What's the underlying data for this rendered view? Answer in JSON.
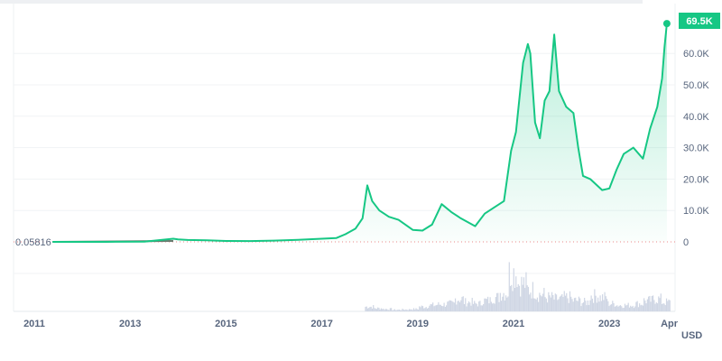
{
  "chart_data": {
    "type": "area",
    "currency_label": "USD",
    "current_price_label": "69.5K",
    "start_price_label": "0.05816",
    "colors": {
      "line": "#16c784",
      "fill": "#16c784",
      "badge": "#16c784",
      "early_line": "#6b7a6f",
      "volume": "#cfd6e4"
    },
    "y_ticks": [
      "0",
      "10.0K",
      "20.0K",
      "30.0K",
      "40.0K",
      "50.0K",
      "60.0K"
    ],
    "y_tick_values": [
      0,
      10000,
      20000,
      30000,
      40000,
      50000,
      60000
    ],
    "x_ticks": [
      "2011",
      "2013",
      "2015",
      "2017",
      "2019",
      "2021",
      "2023",
      "Apr"
    ],
    "x_tick_values": [
      2011,
      2013,
      2015,
      2017,
      2019,
      2021,
      2023,
      2024.25
    ],
    "ylim": [
      0,
      70000
    ],
    "grid": true,
    "series": [
      {
        "x": [
          2011.38,
          2012.5,
          2013.3,
          2013.9,
          2014.0,
          2014.2,
          2014.6,
          2015.0,
          2015.5,
          2016.0,
          2016.5,
          2017.0,
          2017.3,
          2017.5,
          2017.7,
          2017.85,
          2017.95,
          2018.05,
          2018.2,
          2018.4,
          2018.6,
          2018.9,
          2019.1,
          2019.3,
          2019.5,
          2019.7,
          2019.9,
          2020.2,
          2020.4,
          2020.6,
          2020.8,
          2020.95,
          2021.05,
          2021.2,
          2021.3,
          2021.35,
          2021.45,
          2021.55,
          2021.65,
          2021.75,
          2021.85,
          2021.95,
          2022.1,
          2022.25,
          2022.35,
          2022.45,
          2022.6,
          2022.85,
          2023.0,
          2023.15,
          2023.3,
          2023.5,
          2023.7,
          2023.85,
          2024.0,
          2024.1,
          2024.15,
          2024.2
        ],
        "y": [
          0.06,
          10,
          100,
          1000,
          800,
          600,
          500,
          300,
          250,
          400,
          650,
          1000,
          1200,
          2500,
          4200,
          7500,
          18000,
          13000,
          10000,
          8000,
          7000,
          3800,
          3600,
          5500,
          12000,
          9500,
          7500,
          5000,
          9000,
          11000,
          13000,
          29000,
          35000,
          57000,
          63000,
          60000,
          38000,
          33000,
          45000,
          48000,
          66000,
          48000,
          43000,
          41000,
          30000,
          21000,
          20000,
          16500,
          17000,
          23000,
          28000,
          30000,
          26500,
          36000,
          43000,
          52000,
          62000,
          69500
        ]
      }
    ],
    "volume": [
      3,
      2,
      1.5,
      1,
      1.2,
      1.5,
      3,
      4,
      4.5,
      5,
      8,
      6,
      5,
      7,
      9,
      12,
      25,
      18,
      14,
      11,
      9,
      8,
      9,
      7,
      6,
      10,
      9,
      5,
      4,
      4,
      5,
      7,
      8,
      6
    ]
  }
}
